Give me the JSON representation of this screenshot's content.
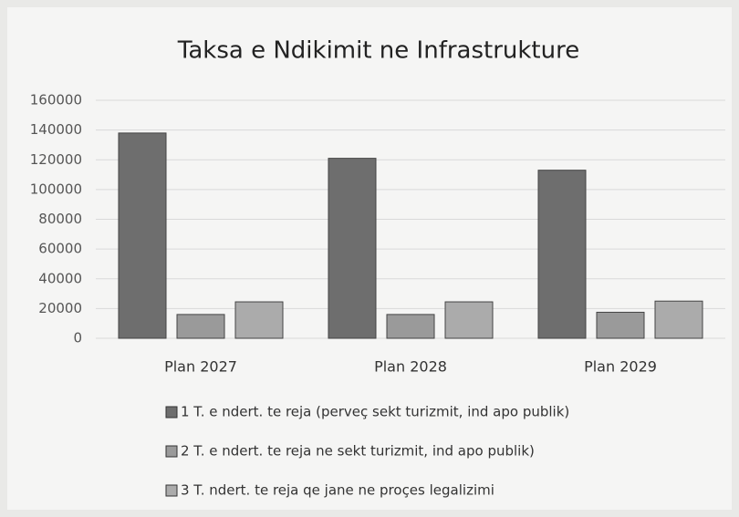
{
  "chart_data": {
    "type": "bar",
    "title": "Taksa e Ndikimit ne Infrastrukture",
    "categories": [
      "Plan 2027",
      "Plan 2028",
      "Plan 2029"
    ],
    "series": [
      {
        "name": "1 T. e ndert. te reja (perveç sekt turizmit, ind apo publik)",
        "color": "#6e6e6e",
        "values": [
          138000,
          121000,
          113000
        ]
      },
      {
        "name": "2 T. e ndert. te reja ne sekt turizmit, ind apo publik)",
        "color": "#9a9a9a",
        "values": [
          16000,
          16000,
          17500
        ]
      },
      {
        "name": "3 T. ndert. te reja qe jane ne proçes legalizimi",
        "color": "#ababab",
        "values": [
          24500,
          24500,
          25000
        ]
      }
    ],
    "ylim": [
      0,
      160000
    ],
    "yticks": [
      0,
      20000,
      40000,
      60000,
      80000,
      100000,
      120000,
      140000,
      160000
    ],
    "grid": true,
    "legend": "bottom"
  }
}
